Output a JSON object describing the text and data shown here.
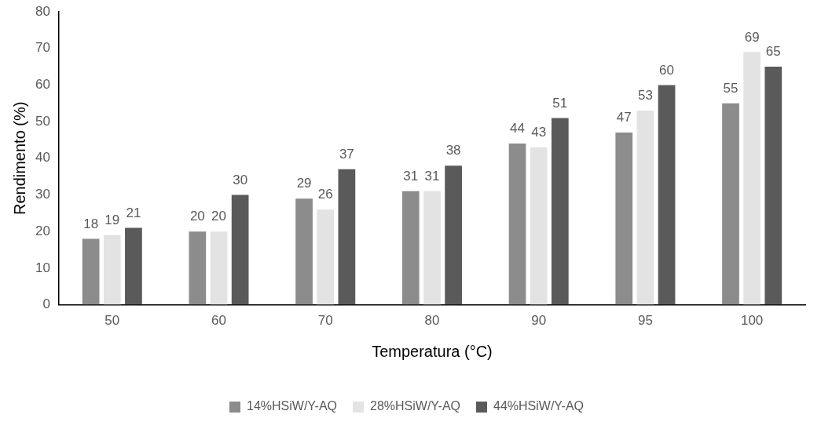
{
  "chart_data": {
    "type": "bar",
    "xlabel": "Temperatura (°C)",
    "ylabel": "Rendimento (%)",
    "categories": [
      "50",
      "60",
      "70",
      "80",
      "90",
      "95",
      "100"
    ],
    "series": [
      {
        "name": "14%HSiW/Y-AQ",
        "color": "#8c8c8c",
        "values": [
          18,
          20,
          29,
          31,
          44,
          47,
          55
        ]
      },
      {
        "name": "28%HSiW/Y-AQ",
        "color": "#e3e3e3",
        "values": [
          19,
          20,
          26,
          31,
          43,
          53,
          69
        ]
      },
      {
        "name": "44%HSiW/Y-AQ",
        "color": "#5a5a5a",
        "values": [
          21,
          30,
          37,
          38,
          51,
          60,
          65
        ]
      }
    ],
    "ylim": [
      0,
      80
    ],
    "yticks": [
      0,
      10,
      20,
      30,
      40,
      50,
      60,
      70,
      80
    ],
    "grid": false,
    "legend": "bottom",
    "data_labels": true
  }
}
